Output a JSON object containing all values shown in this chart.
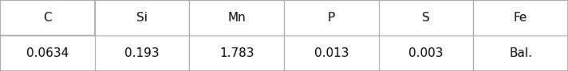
{
  "headers": [
    "C",
    "Si",
    "Mn",
    "P",
    "S",
    "Fe"
  ],
  "values": [
    "0.0634",
    "0.193",
    "1.783",
    "0.013",
    "0.003",
    "Bal."
  ],
  "bg_color": "#ffffff",
  "border_color": "#aaaaaa",
  "fontsize": 11,
  "figwidth": 7.12,
  "figheight": 0.9,
  "dpi": 100
}
